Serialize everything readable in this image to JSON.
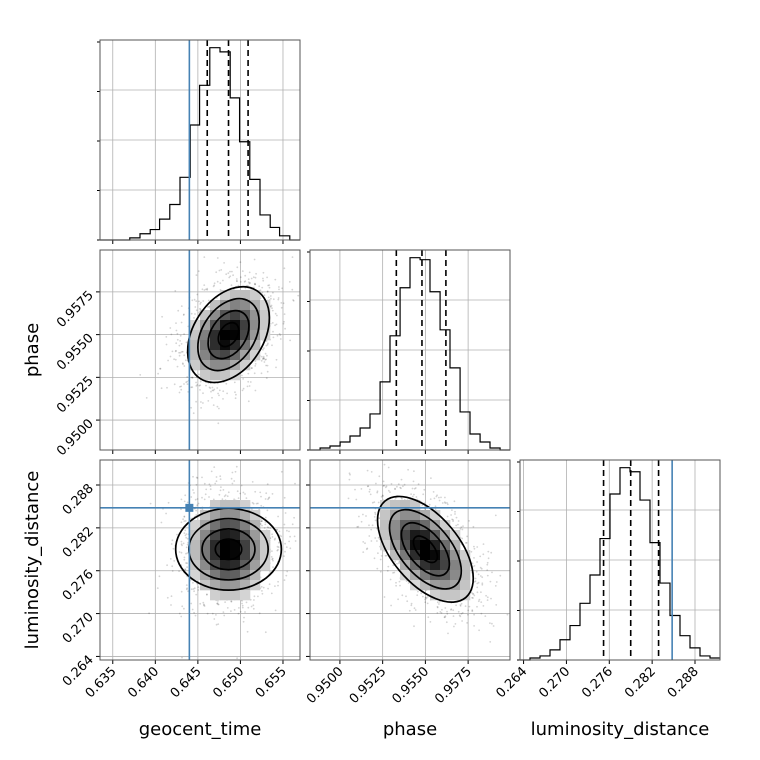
{
  "chart_data": {
    "type": "corner",
    "grid": true,
    "parameters": [
      {
        "name": "geocent_time",
        "xlabel": "geocent_time",
        "ylabel": "",
        "range": [
          0.6335,
          0.657
        ],
        "ticks": [
          0.635,
          0.64,
          0.645,
          0.65,
          0.655
        ],
        "tick_labels": [
          "0.635",
          "0.640",
          "0.645",
          "0.650",
          "0.655"
        ],
        "truth": 0.644,
        "quantiles": [
          0.6461,
          0.6486,
          0.6509
        ],
        "mean": 0.6486,
        "sd": 0.0024,
        "hist_edges": [
          0.6335,
          0.6347,
          0.6358,
          0.637,
          0.6382,
          0.6394,
          0.6405,
          0.6417,
          0.6429,
          0.6441,
          0.6452,
          0.6464,
          0.6476,
          0.6488,
          0.6499,
          0.6511,
          0.6523,
          0.6535,
          0.6546,
          0.6558,
          0.657
        ],
        "hist_counts": [
          0,
          0,
          0,
          0.01,
          0.03,
          0.05,
          0.1,
          0.17,
          0.3,
          0.55,
          0.74,
          0.92,
          0.9,
          0.68,
          0.47,
          0.29,
          0.12,
          0.06,
          0.02,
          0
        ]
      },
      {
        "name": "phase",
        "xlabel": "phase",
        "ylabel": "phase",
        "range": [
          0.94825,
          0.95995
        ],
        "ticks": [
          0.95,
          0.9525,
          0.955,
          0.9575
        ],
        "tick_labels": [
          "0.9500",
          "0.9525",
          "0.9550",
          "0.9575"
        ],
        "truth": null,
        "quantiles": [
          0.9533,
          0.9548,
          0.9562
        ],
        "mean": 0.955,
        "sd": 0.0014,
        "hist_edges": [
          0.94825,
          0.94884,
          0.94942,
          0.95001,
          0.95059,
          0.95118,
          0.95176,
          0.95235,
          0.95293,
          0.95352,
          0.9541,
          0.95469,
          0.95527,
          0.95586,
          0.95644,
          0.95703,
          0.95761,
          0.9582,
          0.95878,
          0.95937,
          0.95995
        ],
        "hist_counts": [
          0,
          0.01,
          0.02,
          0.04,
          0.07,
          0.11,
          0.18,
          0.34,
          0.57,
          0.81,
          0.96,
          0.95,
          0.79,
          0.6,
          0.41,
          0.19,
          0.08,
          0.04,
          0.01,
          0
        ]
      },
      {
        "name": "luminosity_distance",
        "xlabel": "luminosity_distance",
        "ylabel": "luminosity_distance",
        "range": [
          0.2635,
          0.2915
        ],
        "ticks": [
          0.264,
          0.27,
          0.276,
          0.282,
          0.288
        ],
        "tick_labels": [
          "0.264",
          "0.270",
          "0.276",
          "0.282",
          "0.288"
        ],
        "truth": 0.2848,
        "quantiles": [
          0.2752,
          0.279,
          0.2829
        ],
        "mean": 0.279,
        "sd": 0.0037,
        "hist_edges": [
          0.2635,
          0.2649,
          0.2663,
          0.2677,
          0.2691,
          0.2705,
          0.2719,
          0.2733,
          0.2747,
          0.2761,
          0.2775,
          0.2789,
          0.2803,
          0.2817,
          0.2831,
          0.2845,
          0.2859,
          0.2873,
          0.2887,
          0.2901,
          0.2915
        ],
        "hist_counts": [
          0,
          0.01,
          0.02,
          0.05,
          0.1,
          0.17,
          0.28,
          0.42,
          0.6,
          0.82,
          0.95,
          0.93,
          0.79,
          0.58,
          0.38,
          0.22,
          0.12,
          0.06,
          0.02,
          0.01
        ]
      }
    ],
    "pairs": [
      {
        "x": "geocent_time",
        "y": "phase",
        "rho": 0.35
      },
      {
        "x": "geocent_time",
        "y": "luminosity_distance",
        "rho": 0.0
      },
      {
        "x": "phase",
        "y": "luminosity_distance",
        "rho": -0.55
      }
    ],
    "contour_levels": [
      "0.5",
      "1.0",
      "1.5",
      "2.0"
    ],
    "line_colors": {
      "truth": "#4682b4",
      "hist": "#000000",
      "quantile": "#000000",
      "grid": "#b0b0b0",
      "scatter": "#000000"
    }
  }
}
